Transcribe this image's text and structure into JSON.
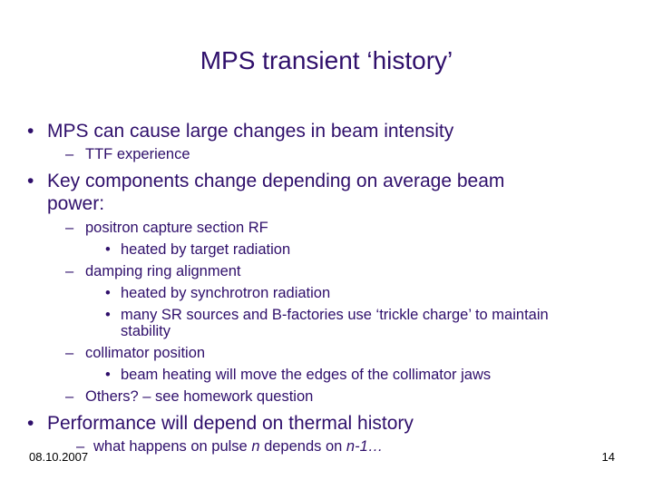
{
  "title": "MPS transient ‘history’",
  "bullets": {
    "b1": "MPS can cause large changes in beam intensity",
    "b1_1": "TTF experience",
    "b2_line1": "Key components change depending on average beam",
    "b2_line2": "power:",
    "b2_1": "positron capture section RF",
    "b2_1_1": "heated by target radiation",
    "b2_2": "damping ring alignment",
    "b2_2_1": "heated by synchrotron radiation",
    "b2_2_2_line1": "many SR sources and B-factories use ‘trickle charge’ to maintain",
    "b2_2_2_line2": "stability",
    "b2_3": "collimator position",
    "b2_3_1": "beam heating will move the edges of the collimator jaws",
    "b2_4": "Others? – see homework question",
    "b3": "Performance will depend on thermal history",
    "b3_1_a": "what happens on pulse ",
    "b3_1_n": "n",
    "b3_1_b": " depends on ",
    "b3_1_c": "n-1…"
  },
  "markers": {
    "level1": "•",
    "level2": "–",
    "level3": "•"
  },
  "footer": {
    "date": "08.10.2007",
    "page_number": "14"
  }
}
